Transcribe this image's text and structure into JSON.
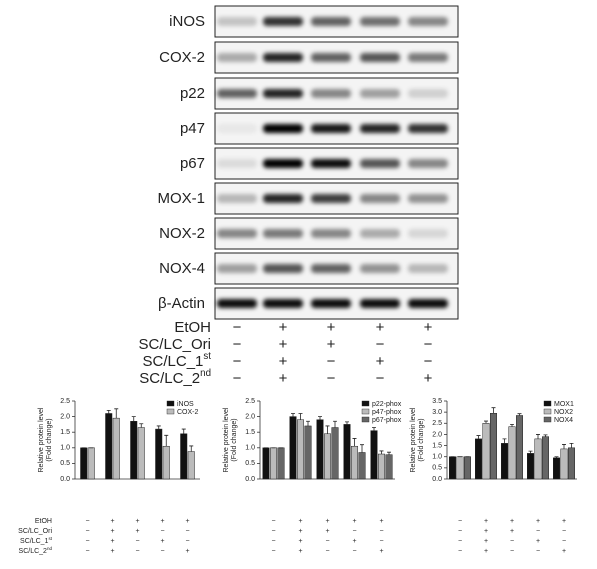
{
  "blot": {
    "proteins": [
      "iNOS",
      "COX-2",
      "p22",
      "p47",
      "p67",
      "MOX-1",
      "NOX-2",
      "NOX-4",
      "β-Actin"
    ],
    "treatments": [
      {
        "label": "EtOH",
        "signs": [
          "−",
          "+",
          "+",
          "+",
          "+"
        ]
      },
      {
        "label": "SC/LC_Ori",
        "signs": [
          "−",
          "+",
          "+",
          "−",
          "−"
        ]
      },
      {
        "label": "SC/LC_1",
        "sup": "st",
        "signs": [
          "−",
          "+",
          "−",
          "+",
          "−"
        ]
      },
      {
        "label": "SC/LC_2",
        "sup": "nd",
        "signs": [
          "−",
          "+",
          "−",
          "−",
          "+"
        ]
      }
    ]
  },
  "chart_data": [
    {
      "type": "bar",
      "ylabel": [
        "Relative protein level",
        "(Fold change)"
      ],
      "ylim": [
        0,
        2.5
      ],
      "yticks": [
        {
          "value": 0,
          "label": "0.0"
        },
        0.5,
        {
          "value": 1,
          "label": "1.0"
        },
        1.5,
        {
          "value": 2,
          "label": "2.0"
        },
        2.5
      ],
      "series": [
        {
          "name": "iNOS",
          "color": "#111111",
          "values": [
            1,
            2.1,
            1.85,
            1.6,
            1.45
          ],
          "errors": [
            0,
            0.1,
            0.15,
            0.1,
            0.15
          ]
        },
        {
          "name": "COX-2",
          "color": "#bbbbbb",
          "values": [
            1,
            1.95,
            1.65,
            1.05,
            0.88
          ],
          "errors": [
            0,
            0.3,
            0.12,
            0.35,
            0.18
          ]
        }
      ]
    },
    {
      "type": "bar",
      "ylabel": [
        "Relative protein level",
        "(Fold change)"
      ],
      "ylim": [
        0,
        2.5
      ],
      "yticks": [
        {
          "value": 0,
          "label": "0.0"
        },
        0.5,
        {
          "value": 1,
          "label": "1.0"
        },
        1.5,
        {
          "value": 2,
          "label": "2.0"
        },
        2.5
      ],
      "series": [
        {
          "name": "p22-phox",
          "color": "#111111",
          "values": [
            1,
            2.0,
            1.9,
            1.75,
            1.55
          ],
          "errors": [
            0,
            0.1,
            0.1,
            0.08,
            0.1
          ]
        },
        {
          "name": "p47-phox",
          "color": "#bbbbbb",
          "values": [
            1,
            1.9,
            1.45,
            1.05,
            0.8
          ],
          "errors": [
            0,
            0.2,
            0.25,
            0.25,
            0.1
          ]
        },
        {
          "name": "p67-phox",
          "color": "#666666",
          "values": [
            1,
            1.7,
            1.65,
            0.85,
            0.78
          ],
          "errors": [
            0,
            0.15,
            0.2,
            0.25,
            0.08
          ]
        }
      ]
    },
    {
      "type": "bar",
      "ylabel": [
        "Relative protein level",
        "(Fold change)"
      ],
      "ylim": [
        0,
        3.5
      ],
      "yticks": [
        {
          "value": 0,
          "label": "0.0"
        },
        0.5,
        {
          "value": 1,
          "label": "1.0"
        },
        1.5,
        {
          "value": 2,
          "label": "2.0"
        },
        2.5,
        {
          "value": 3,
          "label": "3.0"
        },
        3.5
      ],
      "series": [
        {
          "name": "MOX1",
          "color": "#111111",
          "values": [
            1,
            1.8,
            1.6,
            1.15,
            0.95
          ],
          "errors": [
            0,
            0.15,
            0.2,
            0.1,
            0.05
          ]
        },
        {
          "name": "NOX2",
          "color": "#bbbbbb",
          "values": [
            1,
            2.5,
            2.35,
            1.8,
            1.35
          ],
          "errors": [
            0,
            0.1,
            0.1,
            0.2,
            0.2
          ]
        },
        {
          "name": "NOX4",
          "color": "#666666",
          "values": [
            1,
            2.95,
            2.85,
            1.9,
            1.4
          ],
          "errors": [
            0,
            0.25,
            0.08,
            0.08,
            0.2
          ]
        }
      ]
    }
  ]
}
